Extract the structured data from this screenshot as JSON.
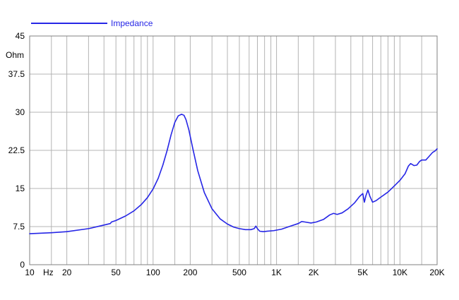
{
  "chart_data": {
    "type": "line",
    "x_scale": "log",
    "xlim": [
      10,
      20000
    ],
    "ylim": [
      0,
      45
    ],
    "grid": true,
    "legend_position": "top-left",
    "y_unit": "Ohm",
    "x_unit": "Hz",
    "x_ticks": [
      {
        "value": 10,
        "label": "10"
      },
      {
        "value": 20,
        "label": "20"
      },
      {
        "value": 50,
        "label": "50"
      },
      {
        "value": 100,
        "label": "100"
      },
      {
        "value": 200,
        "label": "200"
      },
      {
        "value": 500,
        "label": "500"
      },
      {
        "value": 1000,
        "label": "1K"
      },
      {
        "value": 2000,
        "label": "2K"
      },
      {
        "value": 5000,
        "label": "5K"
      },
      {
        "value": 10000,
        "label": "10K"
      },
      {
        "value": 20000,
        "label": "20K"
      }
    ],
    "y_ticks": [
      {
        "value": 0,
        "label": "0"
      },
      {
        "value": 7.5,
        "label": "7.5"
      },
      {
        "value": 15,
        "label": "15"
      },
      {
        "value": 22.5,
        "label": "22.5"
      },
      {
        "value": 30,
        "label": "30"
      },
      {
        "value": 37.5,
        "label": "37.5"
      },
      {
        "value": 45,
        "label": "45"
      }
    ],
    "x_gridlines": [
      10,
      15,
      20,
      30,
      40,
      50,
      60,
      70,
      80,
      90,
      100,
      150,
      200,
      300,
      400,
      500,
      600,
      700,
      800,
      900,
      1000,
      1500,
      2000,
      3000,
      4000,
      5000,
      6000,
      7000,
      8000,
      9000,
      10000,
      15000,
      20000
    ],
    "series": [
      {
        "name": "Impedance",
        "color": "#2626e6",
        "x": [
          10,
          15,
          20,
          30,
          40,
          45,
          46,
          50,
          60,
          70,
          80,
          90,
          100,
          110,
          120,
          130,
          140,
          150,
          160,
          170,
          178,
          185,
          195,
          210,
          230,
          260,
          300,
          350,
          400,
          450,
          500,
          560,
          620,
          660,
          680,
          700,
          730,
          780,
          850,
          950,
          1100,
          1300,
          1500,
          1600,
          1700,
          1900,
          2100,
          2400,
          2700,
          2900,
          3100,
          3400,
          3800,
          4300,
          4700,
          5000,
          5150,
          5300,
          5500,
          5700,
          6000,
          6400,
          7000,
          8000,
          9000,
          10000,
          11000,
          11700,
          12200,
          13000,
          13700,
          14400,
          15000,
          16200,
          17200,
          18400,
          19300,
          20000
        ],
        "y": [
          6.1,
          6.3,
          6.5,
          7.1,
          7.8,
          8.1,
          8.4,
          8.7,
          9.6,
          10.6,
          11.8,
          13.2,
          14.9,
          17.0,
          19.6,
          22.5,
          25.6,
          28.0,
          29.3,
          29.6,
          29.4,
          28.5,
          26.5,
          22.8,
          18.5,
          14.2,
          11.0,
          9.0,
          8.0,
          7.4,
          7.1,
          6.9,
          6.9,
          7.1,
          7.6,
          7.1,
          6.6,
          6.5,
          6.6,
          6.7,
          7.0,
          7.6,
          8.1,
          8.5,
          8.4,
          8.2,
          8.4,
          8.9,
          9.8,
          10.1,
          9.9,
          10.2,
          11.0,
          12.2,
          13.4,
          14.0,
          12.3,
          13.6,
          14.7,
          13.5,
          12.3,
          12.6,
          13.3,
          14.3,
          15.5,
          16.6,
          17.9,
          19.4,
          19.9,
          19.5,
          19.6,
          20.3,
          20.6,
          20.6,
          21.3,
          22.1,
          22.4,
          22.8
        ]
      }
    ]
  }
}
